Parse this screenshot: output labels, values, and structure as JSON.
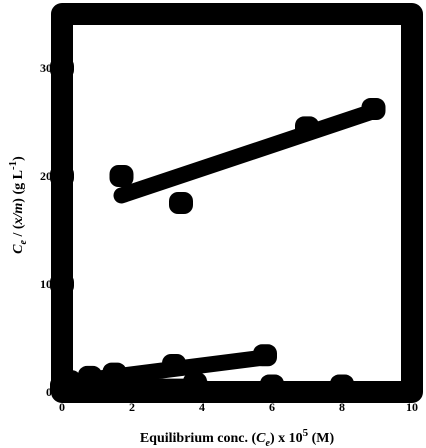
{
  "chart_data": {
    "type": "scatter",
    "xlabel_parts": {
      "pre": "Equilibrium conc. (",
      "var": "C",
      "sub": "e",
      "post": ") x 10",
      "sup": "5",
      "tail": " (M)"
    },
    "ylabel_parts": {
      "var": "C",
      "sub": "e",
      "mid": " / (",
      "frac": "x/m",
      "post": ") (g L",
      "sup": "-1",
      "tail": ")"
    },
    "xlim": [
      0,
      10
    ],
    "ylim": [
      0,
      35
    ],
    "x_ticks": [
      0,
      2,
      4,
      6,
      8,
      10
    ],
    "x_tick_labels": [
      "0",
      "2",
      "4",
      "6",
      "8",
      "10"
    ],
    "y_ticks": [
      0,
      10,
      20,
      30
    ],
    "y_tick_labels": [
      "0",
      "10",
      "20",
      "30"
    ],
    "series": [
      {
        "points": [
          [
            1.7,
            20.0
          ],
          [
            3.4,
            17.5
          ],
          [
            7.0,
            24.5
          ],
          [
            8.9,
            26.2
          ]
        ],
        "fit": [
          [
            1.7,
            18.2
          ],
          [
            8.9,
            26.0
          ]
        ]
      },
      {
        "points": [
          [
            0.2,
            1.0
          ],
          [
            0.8,
            1.4
          ],
          [
            1.5,
            1.7
          ],
          [
            3.2,
            2.5
          ],
          [
            5.8,
            3.4
          ]
        ],
        "fit": [
          [
            0.2,
            0.9
          ],
          [
            5.8,
            3.2
          ]
        ]
      },
      {
        "points": [
          [
            0.0,
            30.0
          ],
          [
            0.0,
            20.0
          ],
          [
            0.0,
            10.0
          ],
          [
            0.0,
            0.5
          ],
          [
            3.8,
            0.8
          ],
          [
            6.0,
            0.6
          ],
          [
            8.0,
            0.6
          ]
        ],
        "fit": [
          [
            0.0,
            0.5
          ],
          [
            4.0,
            0.5
          ]
        ]
      }
    ],
    "colors": {
      "ink": "#000000",
      "background": "#ffffff"
    }
  }
}
